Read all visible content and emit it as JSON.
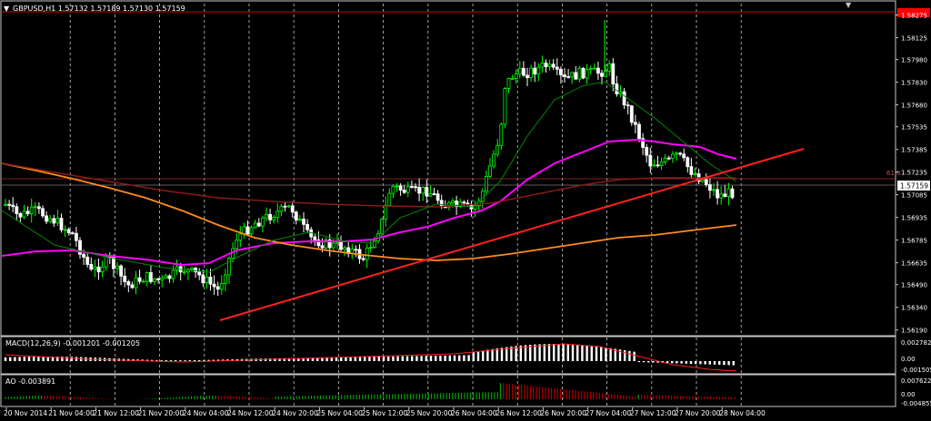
{
  "main_panel": {
    "symbol_info": "GBPUSD,H1  1.57132 1.57189 1.57130 1.57159",
    "price_axis_labels": [
      "1.58275",
      "1.58125",
      "1.57980",
      "1.57830",
      "1.57680",
      "1.57535",
      "1.57385",
      "1.57235",
      "1.57085",
      "1.56935",
      "1.56785",
      "1.56635",
      "1.56490",
      "1.56340",
      "1.56190"
    ],
    "price_axis_range": [
      1.5617,
      1.5835
    ],
    "current_price_tag": "1.57159",
    "red_level_tag": "1.58300",
    "fib_label": "61.8"
  },
  "macd_panel": {
    "label": "MACD(12,26,9) -0.001201 -0.001205",
    "axis_labels": [
      "0.002782",
      "0.00",
      "-0.001505"
    ]
  },
  "ao_panel": {
    "label": "AO -0.003891",
    "axis_labels": [
      "0.007622",
      "0.00",
      "-0.004855"
    ]
  },
  "time_axis": {
    "labels": [
      "20 Nov 2014",
      "21 Nov 04:00",
      "21 Nov 12:00",
      "21 Nov 20:00",
      "24 Nov 04:00",
      "24 Nov 12:00",
      "24 Nov 20:00",
      "25 Nov 04:00",
      "25 Nov 12:00",
      "25 Nov 20:00",
      "26 Nov 04:00",
      "26 Nov 12:00",
      "26 Nov 20:00",
      "27 Nov 04:00",
      "27 Nov 12:00",
      "27 Nov 20:00",
      "28 Nov 04:00"
    ]
  },
  "colors": {
    "background": "#000000",
    "bull_candle": "#00ff00",
    "bear_candle": "#ffffff",
    "grid": "#c8c8c8",
    "ma_fast": "#ff00ff",
    "ma_slow": "#ff8c1a",
    "ma_long": "#8b1a1a",
    "ma_green": "#008800",
    "trendline": "#ff2020",
    "macd_signal": "#ff2020",
    "ao_up": "#00a000",
    "ao_down": "#b00000",
    "price_tag_bg": "#ffffff",
    "red_tag_bg": "#ff0000"
  }
}
